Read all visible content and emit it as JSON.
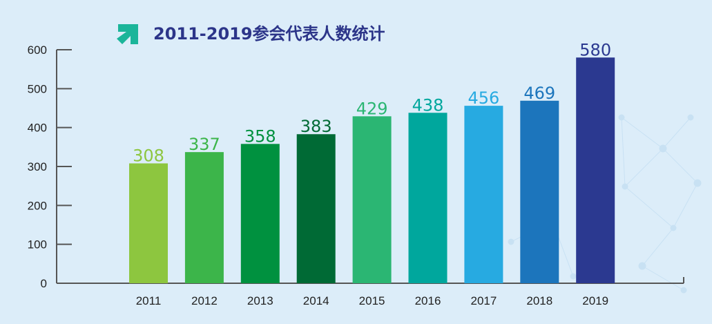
{
  "chart_data": {
    "type": "bar",
    "title": "2011-2019参会代表人数统计",
    "categories": [
      "2011",
      "2012",
      "2013",
      "2014",
      "2015",
      "2016",
      "2017",
      "2018",
      "2019"
    ],
    "values": [
      308,
      337,
      358,
      383,
      429,
      438,
      456,
      469,
      580
    ],
    "data_labels": [
      "308",
      "337",
      "358",
      "383",
      "429",
      "438",
      "456",
      "469",
      "580"
    ],
    "bar_colors": [
      "#8dc63f",
      "#3cb54a",
      "#00913f",
      "#006a35",
      "#2bb673",
      "#00a79d",
      "#27aae1",
      "#1c75bc",
      "#2b3990"
    ],
    "label_colors": [
      "#8dc63f",
      "#3cb54a",
      "#00913f",
      "#006a35",
      "#2bb673",
      "#00a79d",
      "#27aae1",
      "#1c75bc",
      "#2b3990"
    ],
    "y_ticks": [
      "0",
      "100",
      "200",
      "300",
      "400",
      "500",
      "600"
    ],
    "ylim": [
      0,
      600
    ],
    "xlabel": "",
    "ylabel": "",
    "grid": false,
    "legend": "none",
    "title_icon": "arrow-up-right-icon",
    "title_icon_color": "#1bb59a",
    "title_color": "#2c3589",
    "background_color": "#dcedf9"
  }
}
